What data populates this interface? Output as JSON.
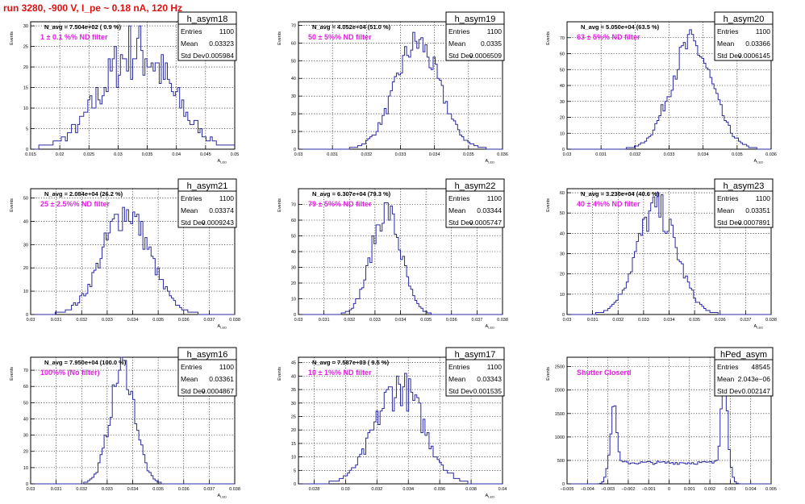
{
  "run_title": "run 3280,  -900 V, I_pe ~ 0.18 nA, 120 Hz",
  "stats_labels": {
    "entries": "Entries",
    "mean": "Mean",
    "stddev": "Std Dev"
  },
  "colors": {
    "hist": "#2a2aa0",
    "annotation": "#e020e0",
    "title": "#e01010",
    "grid": "#000000"
  },
  "chart_data": [
    {
      "type": "histogram",
      "title": "h_asym18",
      "ylabel": "Events",
      "xlabel": "A_LED",
      "xlim": [
        0.015,
        0.05
      ],
      "ylim": [
        0,
        31
      ],
      "xticks": [
        0.015,
        0.02,
        0.025,
        0.03,
        0.035,
        0.04,
        0.045,
        0.05
      ],
      "yticks": [
        0,
        5,
        10,
        15,
        20,
        25,
        30
      ],
      "grid": true,
      "navg": "N_avg = 7.504e+02 ( 0.9 %)",
      "annotation": "1 ± 0.1 %% ND filter",
      "stats": {
        "entries": "1100",
        "mean": "0.03323",
        "stddev": "0.005984"
      },
      "mean": 0.03323,
      "sigma": 0.005984,
      "peak": 24,
      "noise": 0.32
    },
    {
      "type": "histogram",
      "title": "h_asym19",
      "ylabel": "Events",
      "xlabel": "A_LED",
      "xlim": [
        0.03,
        0.036
      ],
      "ylim": [
        0,
        72
      ],
      "xticks": [
        0.03,
        0.031,
        0.032,
        0.033,
        0.034,
        0.035,
        0.036
      ],
      "yticks": [
        0,
        10,
        20,
        30,
        40,
        50,
        60,
        70
      ],
      "grid": true,
      "navg": "N_avg = 4.052e+04 (51.0 %)",
      "annotation": "50 ± 5%% ND filter",
      "stats": {
        "entries": "1100",
        "mean": "0.0335",
        "stddev": "0.0006509"
      },
      "mean": 0.0335,
      "sigma": 0.00065,
      "peak": 60,
      "noise": 0.15
    },
    {
      "type": "histogram",
      "title": "h_asym20",
      "ylabel": "Events",
      "xlabel": "A_LED",
      "xlim": [
        0.03,
        0.036
      ],
      "ylim": [
        0,
        80
      ],
      "xticks": [
        0.03,
        0.031,
        0.032,
        0.033,
        0.034,
        0.035,
        0.036
      ],
      "yticks": [
        0,
        10,
        20,
        30,
        40,
        50,
        60,
        70
      ],
      "grid": true,
      "navg": "N_avg = 5.050e+04 (63.5 %)",
      "annotation": "63 ± 5%% ND filter",
      "stats": {
        "entries": "1100",
        "mean": "0.03366",
        "stddev": "0.0006145"
      },
      "mean": 0.03366,
      "sigma": 0.000614,
      "peak": 66,
      "noise": 0.15
    },
    {
      "type": "histogram",
      "title": "h_asym21",
      "ylabel": "Events",
      "xlabel": "A_LED",
      "xlim": [
        0.03,
        0.038
      ],
      "ylim": [
        0,
        54
      ],
      "xticks": [
        0.03,
        0.031,
        0.032,
        0.033,
        0.034,
        0.035,
        0.036,
        0.037,
        0.038
      ],
      "yticks": [
        0,
        10,
        20,
        30,
        40,
        50
      ],
      "grid": true,
      "navg": "N_avg = 2.084e+04 (26.2 %)",
      "annotation": "25 ± 2.5%% ND filter",
      "stats": {
        "entries": "1100",
        "mean": "0.03374",
        "stddev": "0.0009243"
      },
      "mean": 0.03374,
      "sigma": 0.000924,
      "peak": 44,
      "noise": 0.18
    },
    {
      "type": "histogram",
      "title": "h_asym22",
      "ylabel": "Events",
      "xlabel": "A_LED",
      "xlim": [
        0.03,
        0.038
      ],
      "ylim": [
        0,
        80
      ],
      "xticks": [
        0.03,
        0.031,
        0.032,
        0.033,
        0.034,
        0.035,
        0.036,
        0.037,
        0.038
      ],
      "yticks": [
        0,
        10,
        20,
        30,
        40,
        50,
        60,
        70
      ],
      "grid": true,
      "navg": "N_avg = 6.307e+04 (79.3 %)",
      "annotation": "79 ± 5%% ND filter",
      "stats": {
        "entries": "1100",
        "mean": "0.03344",
        "stddev": "0.0005747"
      },
      "mean": 0.03344,
      "sigma": 0.000575,
      "peak": 66,
      "noise": 0.15
    },
    {
      "type": "histogram",
      "title": "h_asym23",
      "ylabel": "Events",
      "xlabel": "A_LED",
      "xlim": [
        0.03,
        0.038
      ],
      "ylim": [
        0,
        62
      ],
      "xticks": [
        0.03,
        0.031,
        0.032,
        0.033,
        0.034,
        0.035,
        0.036,
        0.037,
        0.038
      ],
      "yticks": [
        0,
        10,
        20,
        30,
        40,
        50,
        60
      ],
      "grid": true,
      "navg": "N_avg = 3.230e+04 (40.6 %)",
      "annotation": "40 ± 4%% ND filter",
      "stats": {
        "entries": "1100",
        "mean": "0.03351",
        "stddev": "0.0007891"
      },
      "mean": 0.03351,
      "sigma": 0.000789,
      "peak": 52,
      "noise": 0.17
    },
    {
      "type": "histogram",
      "title": "h_asym16",
      "ylabel": "Events",
      "xlabel": "A_LED",
      "xlim": [
        0.03,
        0.038
      ],
      "ylim": [
        0,
        78
      ],
      "xticks": [
        0.03,
        0.031,
        0.032,
        0.033,
        0.034,
        0.035,
        0.036,
        0.037,
        0.038
      ],
      "yticks": [
        0,
        10,
        20,
        30,
        40,
        50,
        60,
        70
      ],
      "grid": true,
      "navg": "N_avg = 7.950e+04 (100.0 %)",
      "annotation": "100%% (No filter)",
      "stats": {
        "entries": "1100",
        "mean": "0.03361",
        "stddev": "0.0004867"
      },
      "mean": 0.03361,
      "sigma": 0.000487,
      "peak": 72,
      "noise": 0.14
    },
    {
      "type": "histogram",
      "title": "h_asym17",
      "ylabel": "Events",
      "xlabel": "A_LED",
      "xlim": [
        0.027,
        0.04
      ],
      "ylim": [
        0,
        47
      ],
      "xticks": [
        0.028,
        0.03,
        0.032,
        0.034,
        0.036,
        0.038,
        0.04
      ],
      "yticks": [
        0,
        5,
        10,
        15,
        20,
        25,
        30,
        35,
        40,
        45
      ],
      "grid": true,
      "navg": "N_avg = 7.587e+03 ( 9.5 %)",
      "annotation": "10 ± 1%% ND filter",
      "stats": {
        "entries": "1100",
        "mean": "0.03343",
        "stddev": "0.001535"
      },
      "mean": 0.03343,
      "sigma": 0.001535,
      "peak": 36,
      "noise": 0.22
    },
    {
      "type": "histogram",
      "title": "hPed_asym",
      "ylabel": "Events",
      "xlabel": "",
      "xlim": [
        -0.005,
        0.005
      ],
      "ylim": [
        0,
        2700
      ],
      "xticks": [
        -0.005,
        -0.004,
        -0.003,
        -0.002,
        -0.001,
        0,
        0.001,
        0.002,
        0.003,
        0.004,
        0.005
      ],
      "xticklabels": [
        "−0.005",
        "−0.004",
        "−0.003",
        "−0.002",
        "−0.001",
        "0",
        "0.001",
        "0.002",
        "0.003",
        "0.004",
        "0.005"
      ],
      "yticks": [
        0,
        500,
        1000,
        1500,
        2000,
        2500
      ],
      "grid": true,
      "navg": "",
      "annotation": "Shutter Closerd",
      "stats": {
        "entries": "48545",
        "mean": "2.043e−06",
        "stddev": "0.002147"
      },
      "pedestal": true
    }
  ]
}
